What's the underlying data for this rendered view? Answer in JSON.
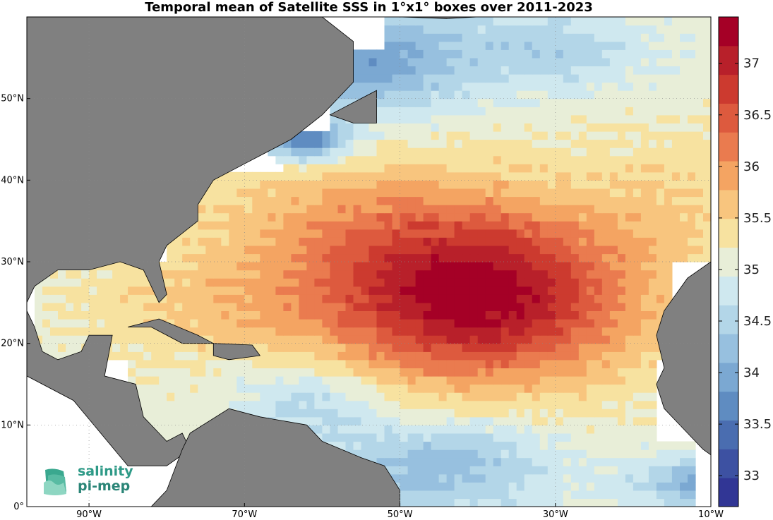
{
  "title": "Temporal mean of Satellite SSS in 1°x1° boxes over 2011-2023",
  "map": {
    "lon_range": [
      -98,
      -10
    ],
    "lat_range": [
      0,
      60
    ],
    "land_color": "#808080",
    "ocean_missing_color": "#ffffff",
    "grid_style": "dotted",
    "x_ticks": [
      {
        "lon": -90,
        "label": "90°W"
      },
      {
        "lon": -70,
        "label": "70°W"
      },
      {
        "lon": -50,
        "label": "50°W"
      },
      {
        "lon": -30,
        "label": "30°W"
      },
      {
        "lon": -10,
        "label": "10°W"
      }
    ],
    "y_ticks": [
      {
        "lat": 0,
        "label": "0°"
      },
      {
        "lat": 10,
        "label": "10°N"
      },
      {
        "lat": 20,
        "label": "20°N"
      },
      {
        "lat": 30,
        "label": "30°N"
      },
      {
        "lat": 40,
        "label": "40°N"
      },
      {
        "lat": 50,
        "label": "50°N"
      }
    ]
  },
  "colorbar": {
    "min": 32.7,
    "max": 37.45,
    "ticks": [
      {
        "value": 33,
        "label": "33"
      },
      {
        "value": 33.5,
        "label": "33.5"
      },
      {
        "value": 34,
        "label": "34"
      },
      {
        "value": 34.5,
        "label": "34.5"
      },
      {
        "value": 35,
        "label": "35"
      },
      {
        "value": 35.5,
        "label": "35.5"
      },
      {
        "value": 36,
        "label": "36"
      },
      {
        "value": 36.5,
        "label": "36.5"
      },
      {
        "value": 37,
        "label": "37"
      }
    ],
    "colors": [
      "#313695",
      "#3d51a2",
      "#4a6db0",
      "#5f8cc1",
      "#7ba8d2",
      "#97c0df",
      "#b3d6e8",
      "#cfe8ef",
      "#e8eed8",
      "#f7e2a0",
      "#f8c57e",
      "#f4a462",
      "#ea7b4f",
      "#dd5a3e",
      "#cc3a2f",
      "#b8202a",
      "#a50026"
    ]
  },
  "logo": {
    "line1": "salinity",
    "line2": "pi-mep"
  }
}
